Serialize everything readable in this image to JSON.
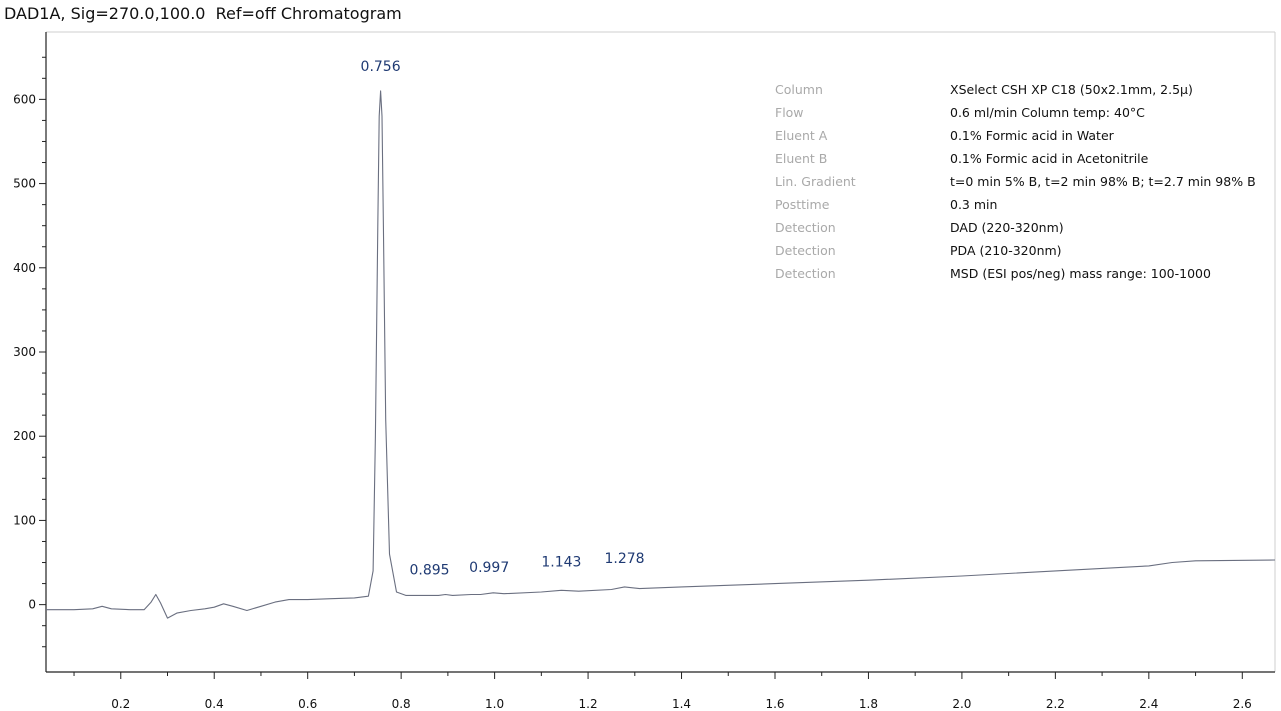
{
  "chart_data": {
    "type": "line",
    "title": "DAD1A, Sig=270.0,100.0  Ref=off Chromatogram",
    "xlabel": "",
    "ylabel": "",
    "xlim": [
      0.04,
      2.67
    ],
    "ylim": [
      -80,
      680
    ],
    "x_ticks": [
      "0.2",
      "0.4",
      "0.6",
      "0.8",
      "1.0",
      "1.2",
      "1.4",
      "1.6",
      "1.8",
      "2.0",
      "2.2",
      "2.4",
      "2.6"
    ],
    "y_ticks": [
      "0",
      "100",
      "200",
      "300",
      "400",
      "500",
      "600"
    ],
    "series": [
      {
        "x": [
          0.04,
          0.1,
          0.14,
          0.16,
          0.18,
          0.22,
          0.25,
          0.265,
          0.275,
          0.285,
          0.3,
          0.32,
          0.35,
          0.38,
          0.4,
          0.42,
          0.44,
          0.47,
          0.5,
          0.53,
          0.56,
          0.6,
          0.65,
          0.7,
          0.73,
          0.74,
          0.745,
          0.75,
          0.753,
          0.756,
          0.759,
          0.762,
          0.767,
          0.775,
          0.79,
          0.81,
          0.85,
          0.88,
          0.895,
          0.91,
          0.95,
          0.97,
          0.997,
          1.02,
          1.1,
          1.143,
          1.18,
          1.25,
          1.278,
          1.31,
          1.4,
          1.6,
          1.8,
          2.0,
          2.2,
          2.4,
          2.45,
          2.5,
          2.67
        ],
        "y": [
          -6,
          -6,
          -5,
          -2,
          -5,
          -6,
          -6,
          3,
          12,
          2,
          -16,
          -10,
          -7,
          -5,
          -3,
          1,
          -2,
          -7,
          -2,
          3,
          6,
          6,
          7,
          8,
          10,
          40,
          200,
          450,
          580,
          610,
          580,
          450,
          220,
          60,
          15,
          11,
          11,
          11,
          12,
          11,
          12,
          12,
          14,
          13,
          15,
          17,
          16,
          18,
          21,
          19,
          21,
          25,
          29,
          34,
          40,
          46,
          50,
          52,
          53
        ]
      }
    ],
    "peak_labels": [
      {
        "x": 0.756,
        "y": 610,
        "label": "0.756"
      },
      {
        "x": 0.895,
        "y": 12,
        "label": "0.895"
      },
      {
        "x": 0.997,
        "y": 14,
        "label": "0.997"
      },
      {
        "x": 1.143,
        "y": 17,
        "label": "1.143"
      },
      {
        "x": 1.278,
        "y": 21,
        "label": "1.278"
      }
    ],
    "grid": false,
    "colors": {
      "trace": "#6a6f80",
      "peak_label": "#1f3a73",
      "axis": "#222222",
      "info_key": "#a9a9a9"
    }
  },
  "method_info": [
    {
      "key": "Column",
      "value": "XSelect CSH XP C18 (50x2.1mm, 2.5µ)"
    },
    {
      "key": "Flow",
      "value": "0.6 ml/min Column temp: 40°C"
    },
    {
      "key": "Eluent A",
      "value": "0.1% Formic acid in Water"
    },
    {
      "key": "Eluent B",
      "value": "0.1% Formic acid in Acetonitrile"
    },
    {
      "key": "Lin. Gradient",
      "value": "t=0 min 5% B, t=2 min 98% B; t=2.7 min 98% B"
    },
    {
      "key": "Posttime",
      "value": "0.3 min"
    },
    {
      "key": "Detection",
      "value": "DAD (220-320nm)"
    },
    {
      "key": "Detection",
      "value": "PDA (210-320nm)"
    },
    {
      "key": "Detection",
      "value": "MSD (ESI pos/neg) mass range: 100-1000"
    }
  ]
}
